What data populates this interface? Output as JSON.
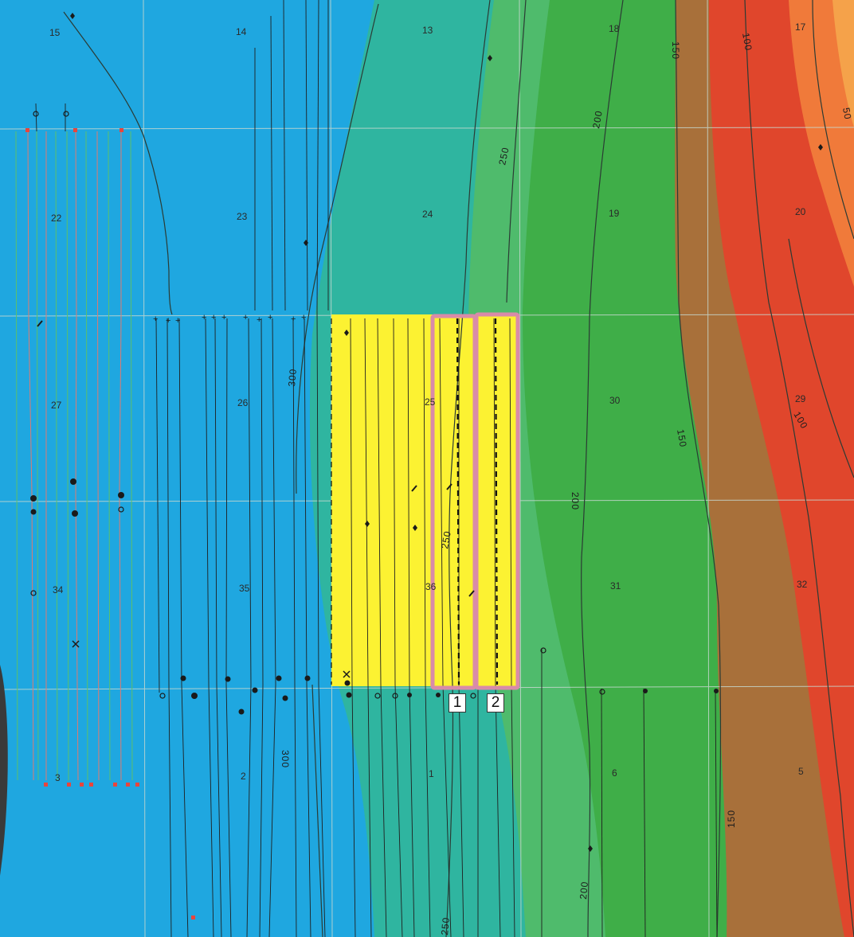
{
  "map": {
    "sections": [
      {
        "id": "s15",
        "label": "15"
      },
      {
        "id": "s14",
        "label": "14"
      },
      {
        "id": "s13",
        "label": "13"
      },
      {
        "id": "s18",
        "label": "18"
      },
      {
        "id": "s17",
        "label": "17"
      },
      {
        "id": "s22",
        "label": "22"
      },
      {
        "id": "s23",
        "label": "23"
      },
      {
        "id": "s24",
        "label": "24"
      },
      {
        "id": "s19",
        "label": "19"
      },
      {
        "id": "s20",
        "label": "20"
      },
      {
        "id": "s27",
        "label": "27"
      },
      {
        "id": "s26",
        "label": "26"
      },
      {
        "id": "s25",
        "label": "25"
      },
      {
        "id": "s30",
        "label": "30"
      },
      {
        "id": "s29",
        "label": "29"
      },
      {
        "id": "s34",
        "label": "34"
      },
      {
        "id": "s35",
        "label": "35"
      },
      {
        "id": "s36",
        "label": "36"
      },
      {
        "id": "s31",
        "label": "31"
      },
      {
        "id": "s32",
        "label": "32"
      },
      {
        "id": "s3",
        "label": "3"
      },
      {
        "id": "s2",
        "label": "2"
      },
      {
        "id": "s1",
        "label": "1"
      },
      {
        "id": "s6",
        "label": "6"
      },
      {
        "id": "s5",
        "label": "5"
      }
    ],
    "contour_labels": [
      {
        "id": "c150a",
        "text": "150"
      },
      {
        "id": "c100a",
        "text": "100"
      },
      {
        "id": "c50a",
        "text": "50"
      },
      {
        "id": "c200a",
        "text": "200"
      },
      {
        "id": "c250a",
        "text": "250"
      },
      {
        "id": "c300a",
        "text": "300"
      },
      {
        "id": "c150b",
        "text": "150"
      },
      {
        "id": "c100b",
        "text": "100"
      },
      {
        "id": "c200b",
        "text": "200"
      },
      {
        "id": "c250b",
        "text": "250"
      },
      {
        "id": "c300b",
        "text": "300"
      },
      {
        "id": "c150c",
        "text": "150"
      },
      {
        "id": "c200c",
        "text": "200"
      },
      {
        "id": "c250c",
        "text": "250"
      }
    ],
    "callouts": [
      {
        "id": "callout-1",
        "label": "1"
      },
      {
        "id": "callout-2",
        "label": "2"
      }
    ],
    "colors": {
      "blue": "#1fa7e0",
      "teal": "#2fb5a0",
      "green_light": "#46b86a",
      "green": "#3fae48",
      "brown": "#a8703a",
      "red": "#e0462c",
      "orange": "#f07a3a",
      "orange_light": "#f5a24a",
      "highlight_yellow": "#fcf232",
      "outline_pink": "#d98ba8",
      "grid": "#c6d8cf"
    }
  }
}
